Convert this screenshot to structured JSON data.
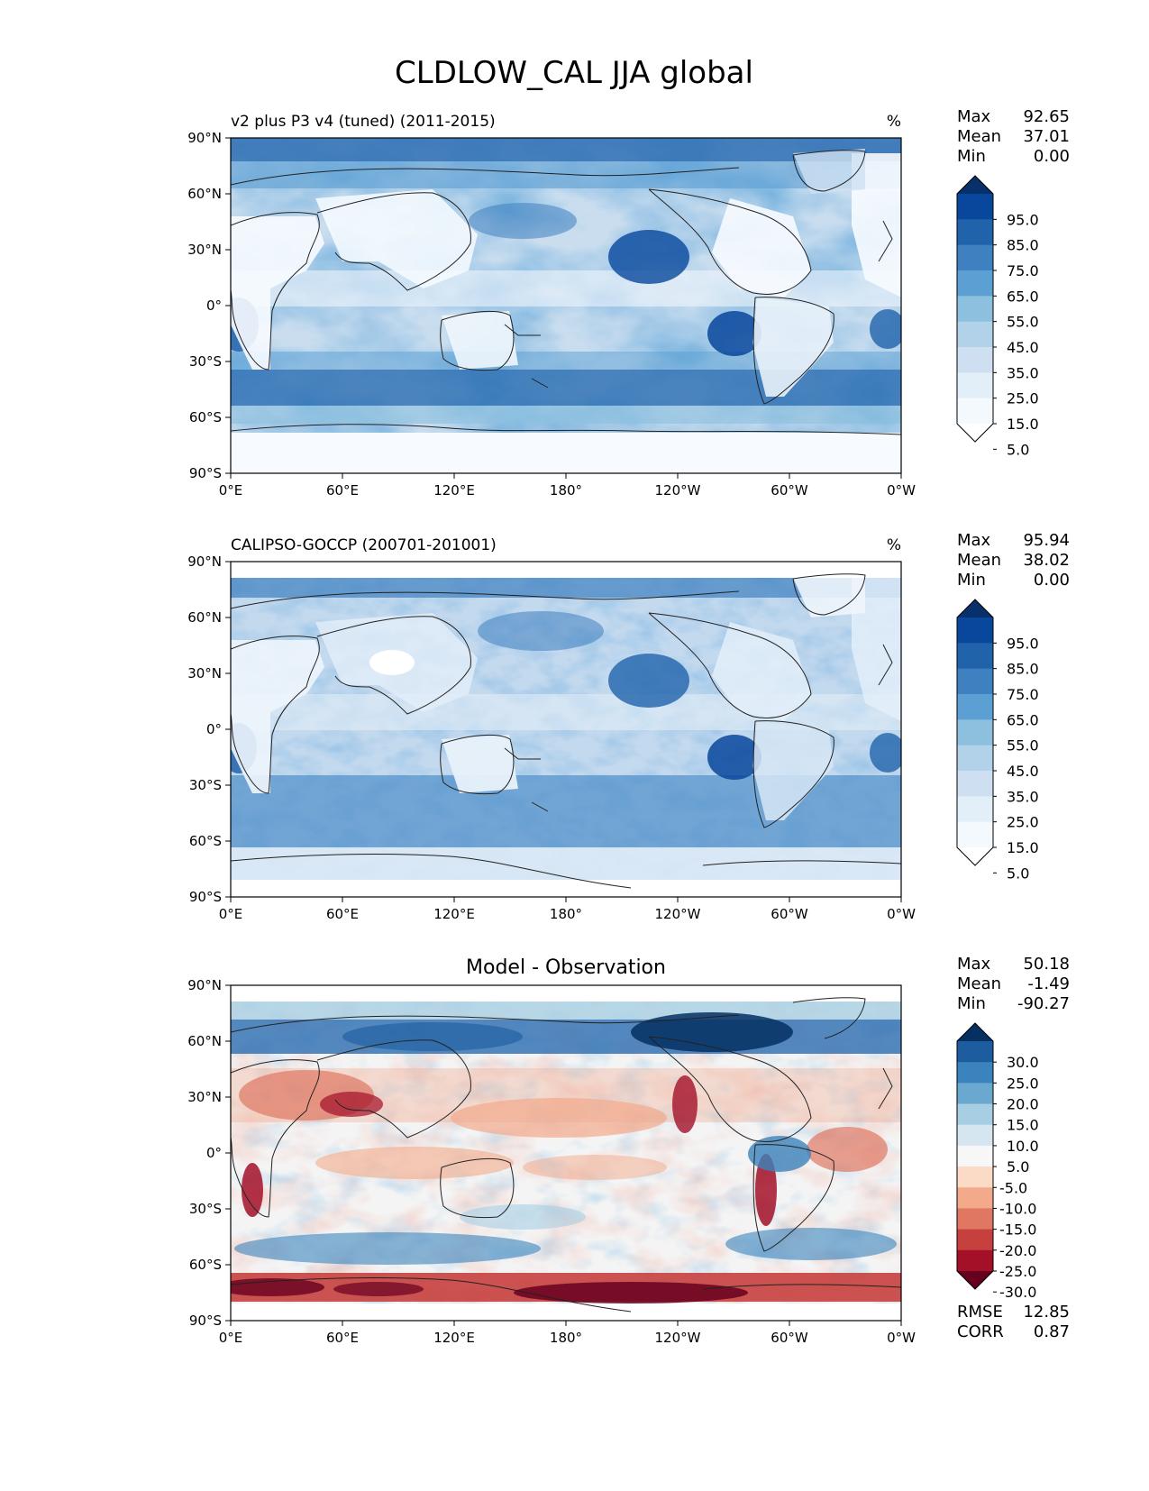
{
  "figure": {
    "suptitle": "CLDLOW_CAL JJA global",
    "x_ticks": [
      "0°E",
      "60°E",
      "120°E",
      "180°",
      "120°W",
      "60°W",
      "0°W"
    ],
    "y_ticks": [
      "90°N",
      "60°N",
      "30°N",
      "0°",
      "30°S",
      "60°S",
      "90°S"
    ]
  },
  "panels": [
    {
      "title_left": "v2 plus P3 v4 (tuned) (2011-2015)",
      "title_right": "%",
      "stats": [
        {
          "label": "Max",
          "value": "92.65"
        },
        {
          "label": "Mean",
          "value": "37.01"
        },
        {
          "label": "Min",
          "value": "0.00"
        }
      ],
      "colorbar": {
        "labels": [
          "95.0",
          "85.0",
          "75.0",
          "65.0",
          "55.0",
          "45.0",
          "35.0",
          "25.0",
          "15.0",
          "5.0"
        ],
        "colors": [
          "#08306b",
          "#08479c",
          "#2163ab",
          "#3f80c0",
          "#5b9fd3",
          "#8cc0de",
          "#b2d2e9",
          "#cddff0",
          "#e2eef8",
          "#f4f9fe",
          "#ffffff"
        ]
      }
    },
    {
      "title_left": "CALIPSO-GOCCP (200701-201001)",
      "title_right": "%",
      "stats": [
        {
          "label": "Max",
          "value": "95.94"
        },
        {
          "label": "Mean",
          "value": "38.02"
        },
        {
          "label": "Min",
          "value": "0.00"
        }
      ],
      "colorbar": {
        "labels": [
          "95.0",
          "85.0",
          "75.0",
          "65.0",
          "55.0",
          "45.0",
          "35.0",
          "25.0",
          "15.0",
          "5.0"
        ],
        "colors": [
          "#08306b",
          "#08479c",
          "#2163ab",
          "#3f80c0",
          "#5b9fd3",
          "#8cc0de",
          "#b2d2e9",
          "#cddff0",
          "#e2eef8",
          "#f4f9fe",
          "#ffffff"
        ]
      }
    },
    {
      "title_center": "Model - Observation",
      "stats": [
        {
          "label": "Max",
          "value": "50.18"
        },
        {
          "label": "Mean",
          "value": "-1.49"
        },
        {
          "label": "Min",
          "value": "-90.27"
        }
      ],
      "colorbar": {
        "labels": [
          "30.0",
          "25.0",
          "20.0",
          "15.0",
          "10.0",
          "5.0",
          "-5.0",
          "-10.0",
          "-15.0",
          "-20.0",
          "-25.0",
          "-30.0"
        ],
        "colors": [
          "#053061",
          "#1c5c9f",
          "#3a83bd",
          "#6aa8d0",
          "#a7cfe4",
          "#d6e6f1",
          "#f7f7f7",
          "#fbdac6",
          "#f2aa8b",
          "#e07762",
          "#c6403e",
          "#a31028",
          "#67001f"
        ]
      },
      "extra_stats": [
        {
          "label": "RMSE",
          "value": "12.85"
        },
        {
          "label": "CORR",
          "value": "0.87"
        }
      ]
    }
  ],
  "chart_data": [
    {
      "type": "heatmap",
      "title": "v2 plus P3 v4 (tuned) (2011-2015)",
      "units": "%",
      "xlim": [
        0,
        360
      ],
      "ylim": [
        -90,
        90
      ],
      "levels": [
        0,
        5,
        15,
        25,
        35,
        45,
        55,
        65,
        75,
        85,
        95,
        100
      ],
      "summary": {
        "max": 92.65,
        "mean": 37.01,
        "min": 0.0
      }
    },
    {
      "type": "heatmap",
      "title": "CALIPSO-GOCCP (200701-201001)",
      "units": "%",
      "xlim": [
        0,
        360
      ],
      "ylim": [
        -90,
        90
      ],
      "levels": [
        0,
        5,
        15,
        25,
        35,
        45,
        55,
        65,
        75,
        85,
        95,
        100
      ],
      "summary": {
        "max": 95.94,
        "mean": 38.02,
        "min": 0.0
      }
    },
    {
      "type": "heatmap",
      "title": "Model - Observation",
      "xlim": [
        0,
        360
      ],
      "ylim": [
        -90,
        90
      ],
      "levels": [
        -30,
        -25,
        -20,
        -15,
        -10,
        -5,
        5,
        10,
        15,
        20,
        25,
        30
      ],
      "summary": {
        "max": 50.18,
        "mean": -1.49,
        "min": -90.27,
        "rmse": 12.85,
        "corr": 0.87
      }
    }
  ]
}
